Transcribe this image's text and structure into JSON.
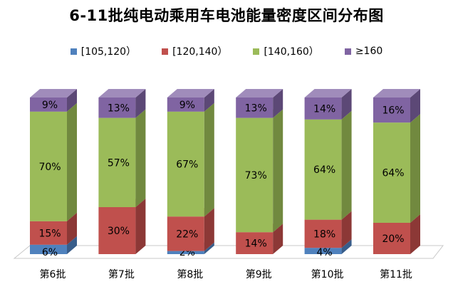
{
  "chart_data": {
    "type": "bar",
    "stacked": true,
    "percent": true,
    "style": "3d",
    "title": "6-11批纯电动乘用车电池能量密度区间分布图",
    "categories": [
      "第6批",
      "第7批",
      "第8批",
      "第9批",
      "第10批",
      "第11批"
    ],
    "series": [
      {
        "name": "[105,120）",
        "color": "#4f81bd",
        "side": "#385d8a",
        "top": "#7ea3d1",
        "values": [
          6,
          0,
          2,
          0,
          4,
          0
        ],
        "labels": [
          "6%",
          "",
          "2%",
          "",
          "4%",
          ""
        ]
      },
      {
        "name": "[120,140）",
        "color": "#c0504d",
        "side": "#8c3836",
        "top": "#d27c79",
        "values": [
          15,
          30,
          22,
          14,
          18,
          20
        ],
        "labels": [
          "15%",
          "30%",
          "22%",
          "14%",
          "18%",
          "20%"
        ]
      },
      {
        "name": "[140,160）",
        "color": "#9bbb59",
        "side": "#71893f",
        "top": "#b5cf83",
        "values": [
          70,
          57,
          67,
          73,
          64,
          64
        ],
        "labels": [
          "70%",
          "57%",
          "67%",
          "73%",
          "64%",
          "64%"
        ]
      },
      {
        "name": "≥160",
        "color": "#8064a2",
        "side": "#5c4876",
        "top": "#a08cbb",
        "values": [
          9,
          13,
          9,
          13,
          14,
          16
        ],
        "labels": [
          "9%",
          "13%",
          "9%",
          "13%",
          "14%",
          "16%"
        ]
      }
    ],
    "ylim": [
      0,
      100
    ],
    "legend": "top",
    "grid": false
  }
}
